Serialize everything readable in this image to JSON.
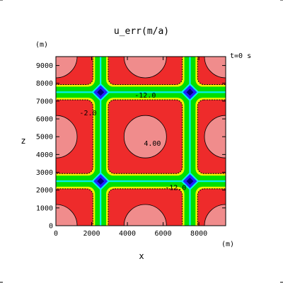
{
  "chart_data": {
    "type": "heatmap",
    "title": "u_err(m/a)",
    "time_label": "t=0  s",
    "xlabel": "x",
    "ylabel": "z",
    "x_unit": "(m)",
    "y_unit": "(m)",
    "xlim": [
      0,
      9500
    ],
    "ylim": [
      0,
      9500
    ],
    "x_ticks": [
      0,
      2000,
      4000,
      6000,
      8000
    ],
    "y_ticks": [
      0,
      1000,
      2000,
      3000,
      4000,
      5000,
      6000,
      7000,
      8000,
      9000
    ],
    "x_tick_labels": [
      "0",
      "2000",
      "4000",
      "6000",
      "8000"
    ],
    "y_tick_labels": [
      "0",
      "1000",
      "2000",
      "3000",
      "4000",
      "5000",
      "6000",
      "7000",
      "8000",
      "9000"
    ],
    "grid": false,
    "band_centers": [
      2500,
      7500
    ],
    "contour_labels": [
      {
        "text": "-12.0",
        "x": 5000,
        "y": 7200
      },
      {
        "text": "4.00",
        "x": 5400,
        "y": 4500
      },
      {
        "text": "-12.0",
        "x": 6700,
        "y": 2000
      },
      {
        "text": "-2.0",
        "x": 1800,
        "y": 6200
      }
    ],
    "colors": {
      "pink": "#f08c8c",
      "red": "#ee2b2b",
      "yellow": "#f0f000",
      "green": "#00e000",
      "cyan": "#00f0f0",
      "blue": "#2020ff",
      "dark": "#000080"
    }
  }
}
